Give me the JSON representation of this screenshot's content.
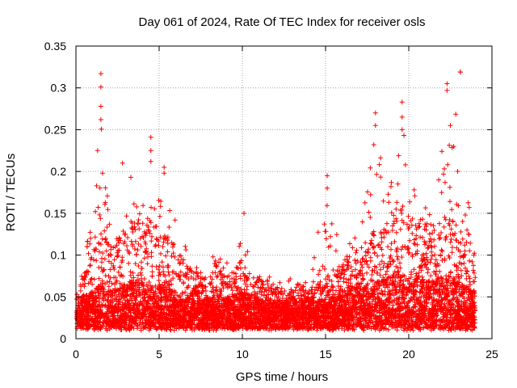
{
  "chart_data": {
    "type": "scatter",
    "title": "Day 061 of 2024, Rate Of TEC Index for receiver osls",
    "xlabel": "GPS time / hours",
    "ylabel": "ROTI / TECUs",
    "xlim": [
      0,
      25
    ],
    "ylim": [
      0,
      0.35
    ],
    "x_ticks": [
      0,
      5,
      10,
      15,
      20,
      25
    ],
    "x_tick_labels": [
      "0",
      "5",
      "10",
      "15",
      "20",
      "25"
    ],
    "y_ticks": [
      0,
      0.05,
      0.1,
      0.15,
      0.2,
      0.25,
      0.3,
      0.35
    ],
    "y_tick_labels": [
      "0",
      "0.05",
      "0.1",
      "0.15",
      "0.2",
      "0.25",
      "0.3",
      "0.35"
    ],
    "grid": true,
    "marker": "+",
    "series": [
      {
        "name": "ROTI",
        "color": "#ff0000",
        "profile": [
          [
            0.0,
            0.03,
            0.05,
            0.09
          ],
          [
            1.0,
            0.04,
            0.09,
            0.16
          ],
          [
            1.5,
            0.05,
            0.12,
            0.32
          ],
          [
            2.0,
            0.04,
            0.1,
            0.18
          ],
          [
            3.0,
            0.05,
            0.12,
            0.2
          ],
          [
            4.0,
            0.05,
            0.14,
            0.19
          ],
          [
            4.5,
            0.05,
            0.13,
            0.24
          ],
          [
            5.0,
            0.05,
            0.12,
            0.2
          ],
          [
            6.0,
            0.04,
            0.1,
            0.16
          ],
          [
            7.0,
            0.03,
            0.07,
            0.1
          ],
          [
            8.0,
            0.03,
            0.06,
            0.09
          ],
          [
            8.5,
            0.04,
            0.08,
            0.13
          ],
          [
            9.0,
            0.03,
            0.06,
            0.1
          ],
          [
            10.0,
            0.04,
            0.08,
            0.15
          ],
          [
            11.0,
            0.03,
            0.06,
            0.09
          ],
          [
            12.0,
            0.03,
            0.05,
            0.08
          ],
          [
            13.0,
            0.03,
            0.05,
            0.08
          ],
          [
            14.0,
            0.03,
            0.05,
            0.08
          ],
          [
            15.0,
            0.03,
            0.06,
            0.2
          ],
          [
            16.0,
            0.04,
            0.08,
            0.12
          ],
          [
            17.0,
            0.05,
            0.1,
            0.15
          ],
          [
            18.0,
            0.05,
            0.12,
            0.27
          ],
          [
            19.0,
            0.06,
            0.13,
            0.21
          ],
          [
            19.7,
            0.06,
            0.15,
            0.28
          ],
          [
            20.5,
            0.06,
            0.13,
            0.18
          ],
          [
            21.5,
            0.05,
            0.12,
            0.18
          ],
          [
            22.3,
            0.06,
            0.14,
            0.3
          ],
          [
            23.0,
            0.05,
            0.12,
            0.32
          ],
          [
            24.0,
            0.04,
            0.09,
            0.13
          ]
        ]
      }
    ],
    "notable_points": [
      [
        1.5,
        0.317
      ],
      [
        1.5,
        0.301
      ],
      [
        1.5,
        0.278
      ],
      [
        1.5,
        0.262
      ],
      [
        1.3,
        0.225
      ],
      [
        1.6,
        0.198
      ],
      [
        2.8,
        0.21
      ],
      [
        3.3,
        0.193
      ],
      [
        4.5,
        0.241
      ],
      [
        4.5,
        0.225
      ],
      [
        4.5,
        0.212
      ],
      [
        5.3,
        0.205
      ],
      [
        5.3,
        0.198
      ],
      [
        10.1,
        0.15
      ],
      [
        15.1,
        0.195
      ],
      [
        15.1,
        0.18
      ],
      [
        18.0,
        0.27
      ],
      [
        18.0,
        0.255
      ],
      [
        17.9,
        0.232
      ],
      [
        19.6,
        0.283
      ],
      [
        19.6,
        0.265
      ],
      [
        19.6,
        0.25
      ],
      [
        19.8,
        0.208
      ],
      [
        22.3,
        0.305
      ],
      [
        22.3,
        0.297
      ],
      [
        22.5,
        0.255
      ],
      [
        22.7,
        0.23
      ],
      [
        23.1,
        0.319
      ],
      [
        23.1,
        0.319
      ],
      [
        21.8,
        0.19
      ]
    ]
  }
}
